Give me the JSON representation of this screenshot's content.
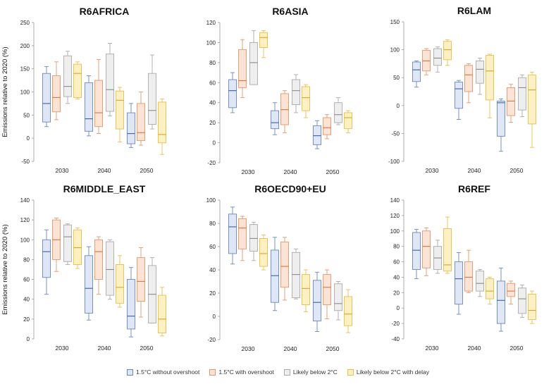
{
  "styles": [
    {
      "fill": "#dfe7f6",
      "stroke": "#6b86bd",
      "median": "#3a5ea8"
    },
    {
      "fill": "#fbe3d5",
      "stroke": "#e3966c",
      "median": "#d6743f"
    },
    {
      "fill": "#eeeeee",
      "stroke": "#aaaaaa",
      "median": "#8a8a8a"
    },
    {
      "fill": "#fdf0c3",
      "stroke": "#e7be4e",
      "median": "#d9a520"
    }
  ],
  "chart_data": [
    {
      "type": "box",
      "title": "R6AFRICA",
      "ylabel": "Emissions relative to 2020 (%)",
      "ylim": [
        -50,
        250
      ],
      "yticks": [
        "-50",
        "0",
        "50",
        "100",
        "150",
        "200",
        "250"
      ],
      "categories": [
        "2030",
        "2040",
        "2050"
      ],
      "series": [
        {
          "name": "1.5°C without overshoot",
          "boxes": [
            [
              25,
              35,
              75,
              140,
              155
            ],
            [
              5,
              15,
              42,
              120,
              135
            ],
            [
              -20,
              -12,
              10,
              55,
              75
            ]
          ]
        },
        {
          "name": "1.5°C with overshoot",
          "boxes": [
            [
              40,
              57,
              88,
              135,
              165
            ],
            [
              10,
              25,
              55,
              125,
              170
            ],
            [
              -15,
              -5,
              12,
              75,
              100
            ]
          ]
        },
        {
          "name": "Likely below 2°C",
          "boxes": [
            [
              75,
              90,
              112,
              178,
              188
            ],
            [
              48,
              58,
              105,
              182,
              205
            ],
            [
              20,
              30,
              60,
              140,
              180
            ]
          ]
        },
        {
          "name": "Likely below 2°C with delay",
          "boxes": [
            [
              85,
              88,
              140,
              160,
              165
            ],
            [
              -8,
              20,
              82,
              102,
              110
            ],
            [
              -35,
              -10,
              8,
              78,
              85
            ]
          ]
        }
      ]
    },
    {
      "type": "box",
      "title": "R6ASIA",
      "ylabel": "",
      "ylim": [
        -20,
        120
      ],
      "yticks": [
        "-20",
        "0",
        "20",
        "40",
        "60",
        "80",
        "100",
        "120"
      ],
      "categories": [
        "2030",
        "2040",
        "2050"
      ],
      "series": [
        {
          "name": "1.5°C without overshoot",
          "boxes": [
            [
              30,
              35,
              52,
              63,
              70
            ],
            [
              8,
              14,
              20,
              32,
              40
            ],
            [
              -6,
              -2,
              7,
              17,
              22
            ]
          ]
        },
        {
          "name": "1.5°C with overshoot",
          "boxes": [
            [
              45,
              55,
              62,
              93,
              103
            ],
            [
              10,
              18,
              33,
              49,
              52
            ],
            [
              4,
              8,
              15,
              25,
              28
            ]
          ]
        },
        {
          "name": "Likely below 2°C",
          "boxes": [
            [
              58,
              58,
              80,
              100,
              112
            ],
            [
              30,
              38,
              52,
              63,
              68
            ],
            [
              18,
              20,
              28,
              40,
              45
            ]
          ]
        },
        {
          "name": "Likely below 2°C with delay",
          "boxes": [
            [
              85,
              95,
              105,
              110,
              112
            ],
            [
              25,
              32,
              45,
              56,
              58
            ],
            [
              10,
              14,
              25,
              30,
              32
            ]
          ]
        }
      ]
    },
    {
      "type": "box",
      "title": "R6LAM",
      "ylabel": "",
      "ylim": [
        -100,
        150
      ],
      "yticks": [
        "-100",
        "-50",
        "0",
        "50",
        "100",
        "150"
      ],
      "categories": [
        "2030",
        "2040",
        "2050"
      ],
      "series": [
        {
          "name": "1.5°C without overshoot",
          "boxes": [
            [
              33,
              43,
              64,
              78,
              80
            ],
            [
              -25,
              -5,
              30,
              42,
              45
            ],
            [
              -82,
              -55,
              5,
              8,
              12
            ]
          ]
        },
        {
          "name": "1.5°C with overshoot",
          "boxes": [
            [
              55,
              62,
              80,
              99,
              102
            ],
            [
              5,
              25,
              55,
              72,
              75
            ],
            [
              -30,
              -18,
              8,
              32,
              38
            ]
          ]
        },
        {
          "name": "Likely below 2°C",
          "boxes": [
            [
              60,
              72,
              85,
              102,
              105
            ],
            [
              20,
              40,
              65,
              80,
              85
            ],
            [
              -20,
              -8,
              32,
              50,
              55
            ]
          ]
        },
        {
          "name": "Likely below 2°C with delay",
          "boxes": [
            [
              72,
              82,
              100,
              115,
              118
            ],
            [
              -22,
              10,
              62,
              90,
              92
            ],
            [
              -75,
              -33,
              28,
              55,
              60
            ]
          ]
        }
      ]
    },
    {
      "type": "box",
      "title": "R6MIDDLE_EAST",
      "ylabel": "Emissions relative to 2020 (%)",
      "ylim": [
        0,
        140
      ],
      "yticks": [
        "0",
        "20",
        "40",
        "60",
        "80",
        "100",
        "120",
        "140"
      ],
      "categories": [
        "2030",
        "2040",
        "2050"
      ],
      "series": [
        {
          "name": "1.5°C without overshoot",
          "boxes": [
            [
              45,
              62,
              88,
              100,
              110
            ],
            [
              19,
              26,
              51,
              84,
              93
            ],
            [
              2,
              10,
              23,
              60,
              72
            ]
          ]
        },
        {
          "name": "1.5°C with overshoot",
          "boxes": [
            [
              68,
              80,
              100,
              120,
              122
            ],
            [
              45,
              60,
              88,
              100,
              103
            ],
            [
              22,
              38,
              58,
              82,
              92
            ]
          ]
        },
        {
          "name": "Likely below 2°C",
          "boxes": [
            [
              75,
              78,
              103,
              115,
              116
            ],
            [
              40,
              44,
              70,
              98,
              100
            ],
            [
              16,
              16,
              45,
              74,
              82
            ]
          ]
        },
        {
          "name": "Likely below 2°C with delay",
          "boxes": [
            [
              71,
              75,
              92,
              110,
              112
            ],
            [
              32,
              36,
              52,
              75,
              84
            ],
            [
              3,
              6,
              20,
              44,
              52
            ]
          ]
        }
      ]
    },
    {
      "type": "box",
      "title": "R6OECD90+EU",
      "ylabel": "",
      "ylim": [
        -20,
        100
      ],
      "yticks": [
        "-20",
        "0",
        "20",
        "40",
        "60",
        "80",
        "100"
      ],
      "categories": [
        "2030",
        "2040",
        "2050"
      ],
      "series": [
        {
          "name": "1.5°C without overshoot",
          "boxes": [
            [
              45,
              54,
              77,
              88,
              94
            ],
            [
              5,
              12,
              35,
              57,
              68
            ],
            [
              -13,
              -4,
              12,
              31,
              38
            ]
          ]
        },
        {
          "name": "1.5°C with overshoot",
          "boxes": [
            [
              48,
              58,
              76,
              84,
              86
            ],
            [
              14,
              25,
              43,
              64,
              68
            ],
            [
              -2,
              10,
              25,
              36,
              40
            ]
          ]
        },
        {
          "name": "Likely below 2°C",
          "boxes": [
            [
              48,
              56,
              67,
              79,
              81
            ],
            [
              15,
              16,
              36,
              55,
              58
            ],
            [
              -3,
              5,
              11,
              28,
              30
            ]
          ]
        },
        {
          "name": "Likely below 2°C with delay",
          "boxes": [
            [
              40,
              43,
              54,
              67,
              70
            ],
            [
              4,
              10,
              24,
              36,
              40
            ],
            [
              -14,
              -8,
              2,
              17,
              23
            ]
          ]
        }
      ]
    },
    {
      "type": "box",
      "title": "R6REF",
      "ylabel": "",
      "ylim": [
        -40,
        140
      ],
      "yticks": [
        "-40",
        "-20",
        "0",
        "20",
        "40",
        "60",
        "80",
        "100",
        "120",
        "140"
      ],
      "categories": [
        "2030",
        "2040",
        "2050"
      ],
      "series": [
        {
          "name": "1.5°C without overshoot",
          "boxes": [
            [
              38,
              50,
              75,
              98,
              102
            ],
            [
              -8,
              5,
              38,
              60,
              72
            ],
            [
              -30,
              -20,
              10,
              35,
              52
            ]
          ]
        },
        {
          "name": "1.5°C with overshoot",
          "boxes": [
            [
              42,
              52,
              80,
              100,
              104
            ],
            [
              20,
              22,
              40,
              60,
              75
            ],
            [
              5,
              15,
              22,
              32,
              35
            ]
          ]
        },
        {
          "name": "Likely below 2°C",
          "boxes": [
            [
              45,
              50,
              65,
              80,
              88
            ],
            [
              15,
              22,
              32,
              48,
              50
            ],
            [
              -12,
              -7,
              12,
              26,
              30
            ]
          ]
        },
        {
          "name": "Likely below 2°C with delay",
          "boxes": [
            [
              45,
              48,
              56,
              103,
              118
            ],
            [
              5,
              12,
              22,
              38,
              40
            ],
            [
              -20,
              -15,
              -3,
              18,
              22
            ]
          ]
        }
      ]
    }
  ]
}
